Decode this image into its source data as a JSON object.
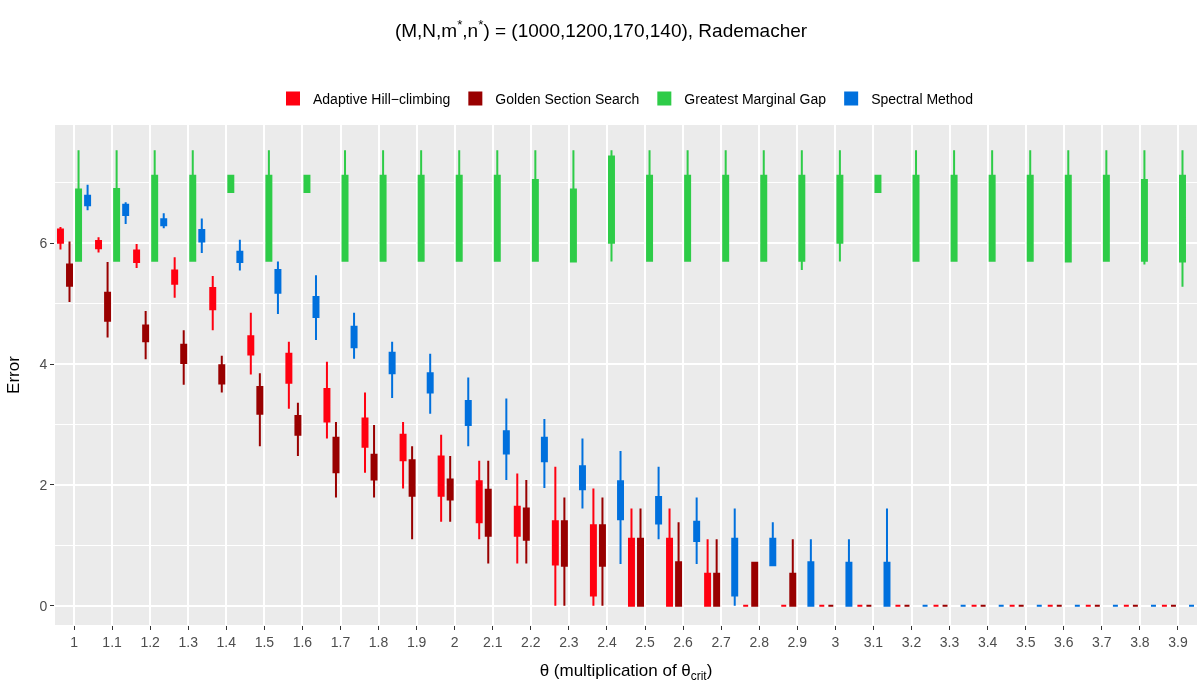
{
  "chart_data": {
    "type": "box",
    "title": "(M,N,m$^{*}$,n$^{*}$) = (1000,1200,170,140), Rademacher",
    "xlabel": "θ (multiplication of θ$_{crit}$)",
    "ylabel": "Error",
    "categories": [
      "1",
      "1.1",
      "1.2",
      "1.3",
      "1.4",
      "1.5",
      "1.6",
      "1.7",
      "1.8",
      "1.9",
      "2",
      "2.1",
      "2.2",
      "2.3",
      "2.4",
      "2.5",
      "2.6",
      "2.7",
      "2.8",
      "2.9",
      "3",
      "3.1",
      "3.2",
      "3.3",
      "3.4",
      "3.5",
      "3.6",
      "3.7",
      "3.8",
      "3.9"
    ],
    "ylim": [
      -0.32,
      7.96
    ],
    "yticks": [
      0,
      2,
      4,
      6
    ],
    "grid": true,
    "legend": "top",
    "series": [
      {
        "name": "Adaptive Hill−climbing",
        "color": "#ff0010",
        "boxes": [
          {
            "low": 5.9,
            "q1": 6.01,
            "median": 6.12,
            "q3": 6.23,
            "high": 6.27
          },
          {
            "low": 5.85,
            "q1": 5.92,
            "median": 5.98,
            "q3": 6.04,
            "high": 6.1
          },
          {
            "low": 5.59,
            "q1": 5.69,
            "median": 5.78,
            "q3": 5.88,
            "high": 5.99
          },
          {
            "low": 5.1,
            "q1": 5.33,
            "median": 5.44,
            "q3": 5.55,
            "high": 5.77
          },
          {
            "low": 4.56,
            "q1": 4.91,
            "median": 5.08,
            "q3": 5.26,
            "high": 5.46
          },
          {
            "low": 3.83,
            "q1": 4.16,
            "median": 4.31,
            "q3": 4.46,
            "high": 4.85
          },
          {
            "low": 3.26,
            "q1": 3.69,
            "median": 3.93,
            "q3": 4.17,
            "high": 4.37
          },
          {
            "low": 2.77,
            "q1": 3.05,
            "median": 3.32,
            "q3": 3.59,
            "high": 4.04
          },
          {
            "low": 2.2,
            "q1": 2.63,
            "median": 2.86,
            "q3": 3.1,
            "high": 3.53
          },
          {
            "low": 1.94,
            "q1": 2.41,
            "median": 2.62,
            "q3": 2.83,
            "high": 3.04
          },
          {
            "low": 1.39,
            "q1": 1.82,
            "median": 2.14,
            "q3": 2.47,
            "high": 2.83
          },
          {
            "low": 1.1,
            "q1": 1.38,
            "median": 1.72,
            "q3": 2.06,
            "high": 2.4
          },
          {
            "low": 0.7,
            "q1": 1.16,
            "median": 1.4,
            "q3": 1.64,
            "high": 2.19
          },
          {
            "low": 0,
            "q1": 0.68,
            "median": 1.04,
            "q3": 1.4,
            "high": 2.3
          },
          {
            "low": 0,
            "q1": 0.17,
            "median": 0.75,
            "q3": 1.33,
            "high": 1.94
          },
          {
            "low": 0,
            "q1": 0,
            "median": 0.55,
            "q3": 1.11,
            "high": 1.61
          },
          {
            "low": 0,
            "q1": 0,
            "median": 0.55,
            "q3": 1.11,
            "high": 1.61
          },
          {
            "low": 0,
            "q1": 0,
            "median": 0.27,
            "q3": 0.53,
            "high": 1.1
          },
          {
            "low": 0,
            "q1": 0,
            "median": 0,
            "q3": 0,
            "high": 0
          },
          {
            "low": 0,
            "q1": 0,
            "median": 0,
            "q3": 0,
            "high": 0
          },
          {
            "low": 0,
            "q1": 0,
            "median": 0,
            "q3": 0,
            "high": 0
          },
          {
            "low": 0,
            "q1": 0,
            "median": 0,
            "q3": 0,
            "high": 0
          },
          {
            "low": 0,
            "q1": 0,
            "median": 0,
            "q3": 0,
            "high": 0
          },
          {
            "low": 0,
            "q1": 0,
            "median": 0,
            "q3": 0,
            "high": 0
          },
          {
            "low": 0,
            "q1": 0,
            "median": 0,
            "q3": 0,
            "high": 0
          },
          {
            "low": 0,
            "q1": 0,
            "median": 0,
            "q3": 0,
            "high": 0
          },
          {
            "low": 0,
            "q1": 0,
            "median": 0,
            "q3": 0,
            "high": 0
          },
          {
            "low": 0,
            "q1": 0,
            "median": 0,
            "q3": 0,
            "high": 0
          },
          {
            "low": 0,
            "q1": 0,
            "median": 0,
            "q3": 0,
            "high": 0
          },
          {
            "low": 0,
            "q1": 0,
            "median": 0,
            "q3": 0,
            "high": 0
          }
        ]
      },
      {
        "name": "Golden Section Search",
        "color": "#990000",
        "boxes": [
          {
            "low": 5.03,
            "q1": 5.3,
            "median": 5.47,
            "q3": 5.65,
            "high": 6.03
          },
          {
            "low": 4.44,
            "q1": 4.72,
            "median": 4.95,
            "q3": 5.18,
            "high": 5.69
          },
          {
            "low": 4.08,
            "q1": 4.38,
            "median": 4.51,
            "q3": 4.64,
            "high": 4.88
          },
          {
            "low": 3.66,
            "q1": 4.02,
            "median": 4.17,
            "q3": 4.32,
            "high": 4.56
          },
          {
            "low": 3.53,
            "q1": 3.68,
            "median": 3.83,
            "q3": 3.98,
            "high": 4.14
          },
          {
            "low": 2.64,
            "q1": 3.18,
            "median": 3.4,
            "q3": 3.62,
            "high": 3.85
          },
          {
            "low": 2.48,
            "q1": 2.83,
            "median": 2.98,
            "q3": 3.14,
            "high": 3.36
          },
          {
            "low": 1.79,
            "q1": 2.21,
            "median": 2.5,
            "q3": 2.78,
            "high": 3.04
          },
          {
            "low": 1.79,
            "q1": 2.09,
            "median": 2.3,
            "q3": 2.5,
            "high": 2.99
          },
          {
            "low": 1.1,
            "q1": 1.82,
            "median": 2.12,
            "q3": 2.41,
            "high": 2.64
          },
          {
            "low": 1.39,
            "q1": 1.76,
            "median": 1.92,
            "q3": 2.09,
            "high": 2.48
          },
          {
            "low": 0.7,
            "q1": 1.16,
            "median": 1.54,
            "q3": 1.92,
            "high": 2.4
          },
          {
            "low": 0.7,
            "q1": 1.09,
            "median": 1.35,
            "q3": 1.61,
            "high": 2.08
          },
          {
            "low": 0,
            "q1": 0.66,
            "median": 1.03,
            "q3": 1.4,
            "high": 1.79
          },
          {
            "low": 0,
            "q1": 0.66,
            "median": 1.0,
            "q3": 1.33,
            "high": 1.79
          },
          {
            "low": 0,
            "q1": 0,
            "median": 0.55,
            "q3": 1.11,
            "high": 1.61
          },
          {
            "low": 0,
            "q1": 0,
            "median": 0.36,
            "q3": 0.72,
            "high": 1.38
          },
          {
            "low": 0,
            "q1": 0,
            "median": 0.27,
            "q3": 0.53,
            "high": 1.1
          },
          {
            "low": 0,
            "q1": 0,
            "median": 0.36,
            "q3": 0.71,
            "high": 0.71
          },
          {
            "low": 0,
            "q1": 0,
            "median": 0.27,
            "q3": 0.53,
            "high": 1.1
          },
          {
            "low": 0,
            "q1": 0,
            "median": 0,
            "q3": 0,
            "high": 0
          },
          {
            "low": 0,
            "q1": 0,
            "median": 0,
            "q3": 0,
            "high": 0
          },
          {
            "low": 0,
            "q1": 0,
            "median": 0,
            "q3": 0,
            "high": 0
          },
          {
            "low": 0,
            "q1": 0,
            "median": 0,
            "q3": 0,
            "high": 0
          },
          {
            "low": 0,
            "q1": 0,
            "median": 0,
            "q3": 0,
            "high": 0
          },
          {
            "low": 0,
            "q1": 0,
            "median": 0,
            "q3": 0,
            "high": 0
          },
          {
            "low": 0,
            "q1": 0,
            "median": 0,
            "q3": 0,
            "high": 0
          },
          {
            "low": 0,
            "q1": 0,
            "median": 0,
            "q3": 0,
            "high": 0
          },
          {
            "low": 0,
            "q1": 0,
            "median": 0,
            "q3": 0,
            "high": 0
          },
          {
            "low": 0,
            "q1": 0,
            "median": 0,
            "q3": 0,
            "high": 0
          }
        ]
      },
      {
        "name": "Greatest Marginal Gap",
        "color": "#2ecc48",
        "boxes": [
          {
            "low": 5.71,
            "q1": 5.71,
            "median": 6.3,
            "q3": 6.89,
            "high": 7.54
          },
          {
            "low": 5.71,
            "q1": 5.71,
            "median": 6.3,
            "q3": 6.9,
            "high": 7.54
          },
          {
            "low": 5.71,
            "q1": 5.71,
            "median": 6.42,
            "q3": 7.12,
            "high": 7.54
          },
          {
            "low": 5.71,
            "q1": 5.71,
            "median": 6.42,
            "q3": 7.12,
            "high": 7.54
          },
          {
            "low": 6.85,
            "q1": 6.85,
            "median": 6.98,
            "q3": 7.12,
            "high": 7.12
          },
          {
            "low": 5.71,
            "q1": 5.71,
            "median": 6.42,
            "q3": 7.12,
            "high": 7.54
          },
          {
            "low": 6.85,
            "q1": 6.85,
            "median": 6.98,
            "q3": 7.12,
            "high": 7.12
          },
          {
            "low": 5.71,
            "q1": 5.71,
            "median": 6.42,
            "q3": 7.12,
            "high": 7.54
          },
          {
            "low": 5.71,
            "q1": 5.71,
            "median": 6.42,
            "q3": 7.12,
            "high": 7.54
          },
          {
            "low": 5.71,
            "q1": 5.71,
            "median": 6.42,
            "q3": 7.12,
            "high": 7.54
          },
          {
            "low": 5.71,
            "q1": 5.71,
            "median": 6.42,
            "q3": 7.12,
            "high": 7.54
          },
          {
            "low": 5.71,
            "q1": 5.71,
            "median": 6.42,
            "q3": 7.12,
            "high": 7.54
          },
          {
            "low": 5.71,
            "q1": 5.71,
            "median": 6.38,
            "q3": 7.05,
            "high": 7.54
          },
          {
            "low": 5.7,
            "q1": 5.7,
            "median": 6.3,
            "q3": 6.89,
            "high": 7.54
          },
          {
            "low": 5.7,
            "q1": 6.01,
            "median": 6.72,
            "q3": 7.44,
            "high": 7.54
          },
          {
            "low": 5.71,
            "q1": 5.71,
            "median": 6.42,
            "q3": 7.12,
            "high": 7.54
          },
          {
            "low": 5.71,
            "q1": 5.71,
            "median": 6.42,
            "q3": 7.12,
            "high": 7.54
          },
          {
            "low": 5.71,
            "q1": 5.71,
            "median": 6.42,
            "q3": 7.12,
            "high": 7.54
          },
          {
            "low": 5.71,
            "q1": 5.71,
            "median": 6.42,
            "q3": 7.12,
            "high": 7.54
          },
          {
            "low": 5.56,
            "q1": 5.71,
            "median": 6.42,
            "q3": 7.12,
            "high": 7.54
          },
          {
            "low": 5.7,
            "q1": 6.01,
            "median": 6.56,
            "q3": 7.12,
            "high": 7.54
          },
          {
            "low": 6.85,
            "q1": 6.85,
            "median": 6.98,
            "q3": 7.12,
            "high": 7.12
          },
          {
            "low": 5.71,
            "q1": 5.71,
            "median": 6.42,
            "q3": 7.12,
            "high": 7.54
          },
          {
            "low": 5.71,
            "q1": 5.71,
            "median": 6.42,
            "q3": 7.12,
            "high": 7.54
          },
          {
            "low": 5.71,
            "q1": 5.71,
            "median": 6.42,
            "q3": 7.12,
            "high": 7.54
          },
          {
            "low": 5.71,
            "q1": 5.71,
            "median": 6.42,
            "q3": 7.12,
            "high": 7.54
          },
          {
            "low": 5.7,
            "q1": 5.7,
            "median": 6.41,
            "q3": 7.12,
            "high": 7.54
          },
          {
            "low": 5.71,
            "q1": 5.71,
            "median": 6.42,
            "q3": 7.12,
            "high": 7.54
          },
          {
            "low": 5.65,
            "q1": 5.71,
            "median": 6.38,
            "q3": 7.05,
            "high": 7.54
          },
          {
            "low": 5.28,
            "q1": 5.7,
            "median": 6.41,
            "q3": 7.12,
            "high": 7.54
          }
        ]
      },
      {
        "name": "Spectral Method",
        "color": "#0070dd",
        "boxes": [
          {
            "low": 6.55,
            "q1": 6.63,
            "median": 6.71,
            "q3": 6.79,
            "high": 6.97
          },
          {
            "low": 6.32,
            "q1": 6.47,
            "median": 6.55,
            "q3": 6.64,
            "high": 6.68
          },
          {
            "low": 6.25,
            "q1": 6.3,
            "median": 6.35,
            "q3": 6.4,
            "high": 6.5
          },
          {
            "low": 5.84,
            "q1": 6.03,
            "median": 6.12,
            "q3": 6.22,
            "high": 6.41
          },
          {
            "low": 5.55,
            "q1": 5.69,
            "median": 5.78,
            "q3": 5.86,
            "high": 6.06
          },
          {
            "low": 4.83,
            "q1": 5.18,
            "median": 5.37,
            "q3": 5.56,
            "high": 5.7
          },
          {
            "low": 4.4,
            "q1": 4.78,
            "median": 4.95,
            "q3": 5.11,
            "high": 5.47
          },
          {
            "low": 4.09,
            "q1": 4.28,
            "median": 4.45,
            "q3": 4.62,
            "high": 4.85
          },
          {
            "low": 3.44,
            "q1": 3.85,
            "median": 4.02,
            "q3": 4.19,
            "high": 4.37
          },
          {
            "low": 3.18,
            "q1": 3.53,
            "median": 3.69,
            "q3": 3.85,
            "high": 4.17
          },
          {
            "low": 2.64,
            "q1": 2.99,
            "median": 3.19,
            "q3": 3.39,
            "high": 3.78
          },
          {
            "low": 2.08,
            "q1": 2.52,
            "median": 2.71,
            "q3": 2.89,
            "high": 3.43
          },
          {
            "low": 1.95,
            "q1": 2.39,
            "median": 2.58,
            "q3": 2.78,
            "high": 3.09
          },
          {
            "low": 1.61,
            "q1": 1.93,
            "median": 2.12,
            "q3": 2.31,
            "high": 2.77
          },
          {
            "low": 0.69,
            "q1": 1.43,
            "median": 1.75,
            "q3": 2.06,
            "high": 2.56
          },
          {
            "low": 1.1,
            "q1": 1.36,
            "median": 1.58,
            "q3": 1.8,
            "high": 2.3
          },
          {
            "low": 0.69,
            "q1": 1.07,
            "median": 1.23,
            "q3": 1.39,
            "high": 1.79
          },
          {
            "low": 0,
            "q1": 0.17,
            "median": 0.64,
            "q3": 1.11,
            "high": 1.61
          },
          {
            "low": 0.67,
            "q1": 0.67,
            "median": 0.89,
            "q3": 1.11,
            "high": 1.38
          },
          {
            "low": 0,
            "q1": 0,
            "median": 0.36,
            "q3": 0.72,
            "high": 1.1
          },
          {
            "low": 0,
            "q1": 0,
            "median": 0.36,
            "q3": 0.71,
            "high": 1.1
          },
          {
            "low": 0,
            "q1": 0,
            "median": 0.36,
            "q3": 0.71,
            "high": 1.61
          },
          {
            "low": 0,
            "q1": 0,
            "median": 0,
            "q3": 0,
            "high": 0
          },
          {
            "low": 0,
            "q1": 0,
            "median": 0,
            "q3": 0,
            "high": 0
          },
          {
            "low": 0,
            "q1": 0,
            "median": 0,
            "q3": 0,
            "high": 0
          },
          {
            "low": 0,
            "q1": 0,
            "median": 0,
            "q3": 0,
            "high": 0
          },
          {
            "low": 0,
            "q1": 0,
            "median": 0,
            "q3": 0,
            "high": 0
          },
          {
            "low": 0,
            "q1": 0,
            "median": 0,
            "q3": 0,
            "high": 0
          },
          {
            "low": 0,
            "q1": 0,
            "median": 0,
            "q3": 0,
            "high": 0
          },
          {
            "low": 0,
            "q1": 0,
            "median": 0,
            "q3": 0,
            "high": 0
          }
        ]
      }
    ]
  }
}
